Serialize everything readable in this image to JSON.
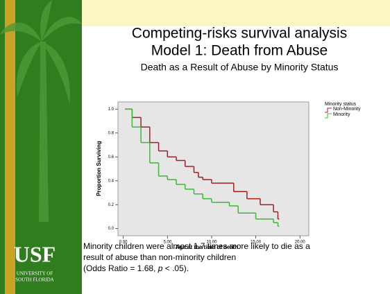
{
  "slide": {
    "title": [
      "Competing-risks survival analysis",
      "Model 1: Death from Abuse"
    ],
    "subtitle": "Death as a Result of Abuse by Minority Status",
    "caption": [
      "Minority children were almost 1.7 times more likely to die as a",
      "result of abuse than non-minority children",
      "(Odds Ratio = 1.68, ",
      "p",
      " < .05)."
    ],
    "logo": {
      "name": "USF",
      "line1": "UNIVERSITY OF",
      "line2": "SOUTH FLORIDA"
    }
  },
  "chart_data": {
    "type": "step",
    "x_label": "Age at the time of death",
    "y_label": "Proportion Surviving",
    "legend_title": "Minority status",
    "xlim": [
      -0.6,
      21
    ],
    "ylim": [
      -0.06,
      1.06
    ],
    "xticks": [
      {
        "value": 0,
        "label": "0.00"
      },
      {
        "value": 5,
        "label": "5.00"
      },
      {
        "value": 10,
        "label": "10.00"
      },
      {
        "value": 15,
        "label": "15.00"
      },
      {
        "value": 20,
        "label": "20.00"
      }
    ],
    "yticks": [
      {
        "value": 0,
        "label": "0.0"
      },
      {
        "value": 0.2,
        "label": "0.2"
      },
      {
        "value": 0.4,
        "label": "0.4"
      },
      {
        "value": 0.6,
        "label": "0.6"
      },
      {
        "value": 0.8,
        "label": "0.8"
      },
      {
        "value": 1,
        "label": "1.0"
      }
    ],
    "series": [
      {
        "name": "Non-Minority",
        "color": "#a31f1f",
        "x": [
          0.2,
          1,
          2,
          3,
          4,
          5,
          6,
          7,
          8,
          8.5,
          9,
          10,
          12.5,
          14,
          15.5,
          17,
          17.5
        ],
        "values": [
          1.0,
          0.93,
          0.85,
          0.72,
          0.65,
          0.6,
          0.57,
          0.52,
          0.47,
          0.43,
          0.41,
          0.38,
          0.31,
          0.25,
          0.2,
          0.14,
          0.08
        ]
      },
      {
        "name": "Minority",
        "color": "#3cb832",
        "x": [
          0.2,
          1,
          2,
          3,
          4,
          5,
          6,
          7,
          8,
          9,
          10,
          12,
          13,
          15,
          17,
          17.5
        ],
        "values": [
          1.0,
          0.85,
          0.72,
          0.55,
          0.44,
          0.41,
          0.37,
          0.33,
          0.29,
          0.25,
          0.22,
          0.19,
          0.13,
          0.08,
          0.05,
          0.02
        ]
      }
    ]
  }
}
